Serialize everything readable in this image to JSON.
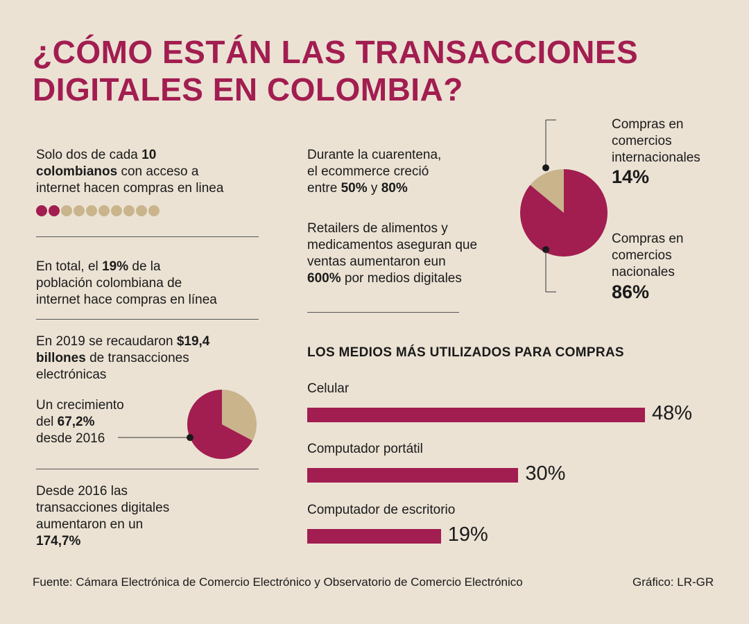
{
  "title": {
    "line1": "¿CÓMO ESTÁN LAS TRANSACCIONES",
    "line2": "DIGITALES EN COLOMBIA?"
  },
  "stat1": {
    "a": "Solo dos de cada ",
    "b": "10",
    "c": "colombianos",
    "d": " con acceso a",
    "e": "internet hacen compras en linea",
    "filled": 2,
    "total": 10
  },
  "stat2": {
    "a": "En total, el ",
    "b": "19%",
    "c": " de la",
    "d": "población colombiana de",
    "e": "internet hace compras en línea"
  },
  "stat3": {
    "a": "En 2019 se recaudaron ",
    "b": "$19,4",
    "c": "billones",
    "d": " de transacciones",
    "e": "electrónicas"
  },
  "stat4": {
    "a": "Un crecimiento",
    "b": "del ",
    "c": "67,2%",
    "d": "desde 2016"
  },
  "stat5": {
    "a": "Desde 2016 las",
    "b": "transacciones digitales",
    "c": "aumentaron en un",
    "d": "174,7%"
  },
  "stat6": {
    "a": "Durante la cuarentena,",
    "b": "el ecommerce creció",
    "c": "entre ",
    "d": "50%",
    "e": " y ",
    "f": "80%"
  },
  "stat7": {
    "a": "Retailers de alimentos y",
    "b": "medicamentos aseguran que",
    "c": "ventas aumentaron eun",
    "d": "600%",
    "e": " por medios digitales"
  },
  "pie_labels": {
    "intl_1": "Compras en",
    "intl_2": "comercios",
    "intl_3": "internacionales",
    "intl_pct": "14%",
    "nat_1": "Compras en",
    "nat_2": "comercios",
    "nat_3": "nacionales",
    "nat_pct": "86%"
  },
  "bars_title": "LOS MEDIOS MÁS UTILIZADOS PARA COMPRAS",
  "footer": {
    "source": "Fuente: Cámara Electrónica de Comercio Electrónico y Observatorio de Comercio Electrónico",
    "credit": "Gráfico: LR-GR"
  },
  "colors": {
    "accent": "#a21d50",
    "secondary": "#c9b48c",
    "background": "#ebe2d4"
  },
  "chart_data": [
    {
      "type": "pie",
      "categories": [
        "Compras en comercios internacionales",
        "Compras en comercios nacionales"
      ],
      "values": [
        14,
        86
      ],
      "colors": [
        "#c9b48c",
        "#a21d50"
      ]
    },
    {
      "type": "pie",
      "categories": [
        "Un crecimiento del 67,2% desde 2016",
        ""
      ],
      "values": [
        67.2,
        32.8
      ],
      "colors": [
        "#a21d50",
        "#c9b48c"
      ]
    },
    {
      "type": "bar",
      "title": "LOS MEDIOS MÁS UTILIZADOS PARA COMPRAS",
      "categories": [
        "Celular",
        "Computador portátil",
        "Computador de escritorio"
      ],
      "values": [
        48,
        30,
        19
      ],
      "value_labels": [
        "48%",
        "30%",
        "19%"
      ],
      "unit": "%"
    }
  ]
}
